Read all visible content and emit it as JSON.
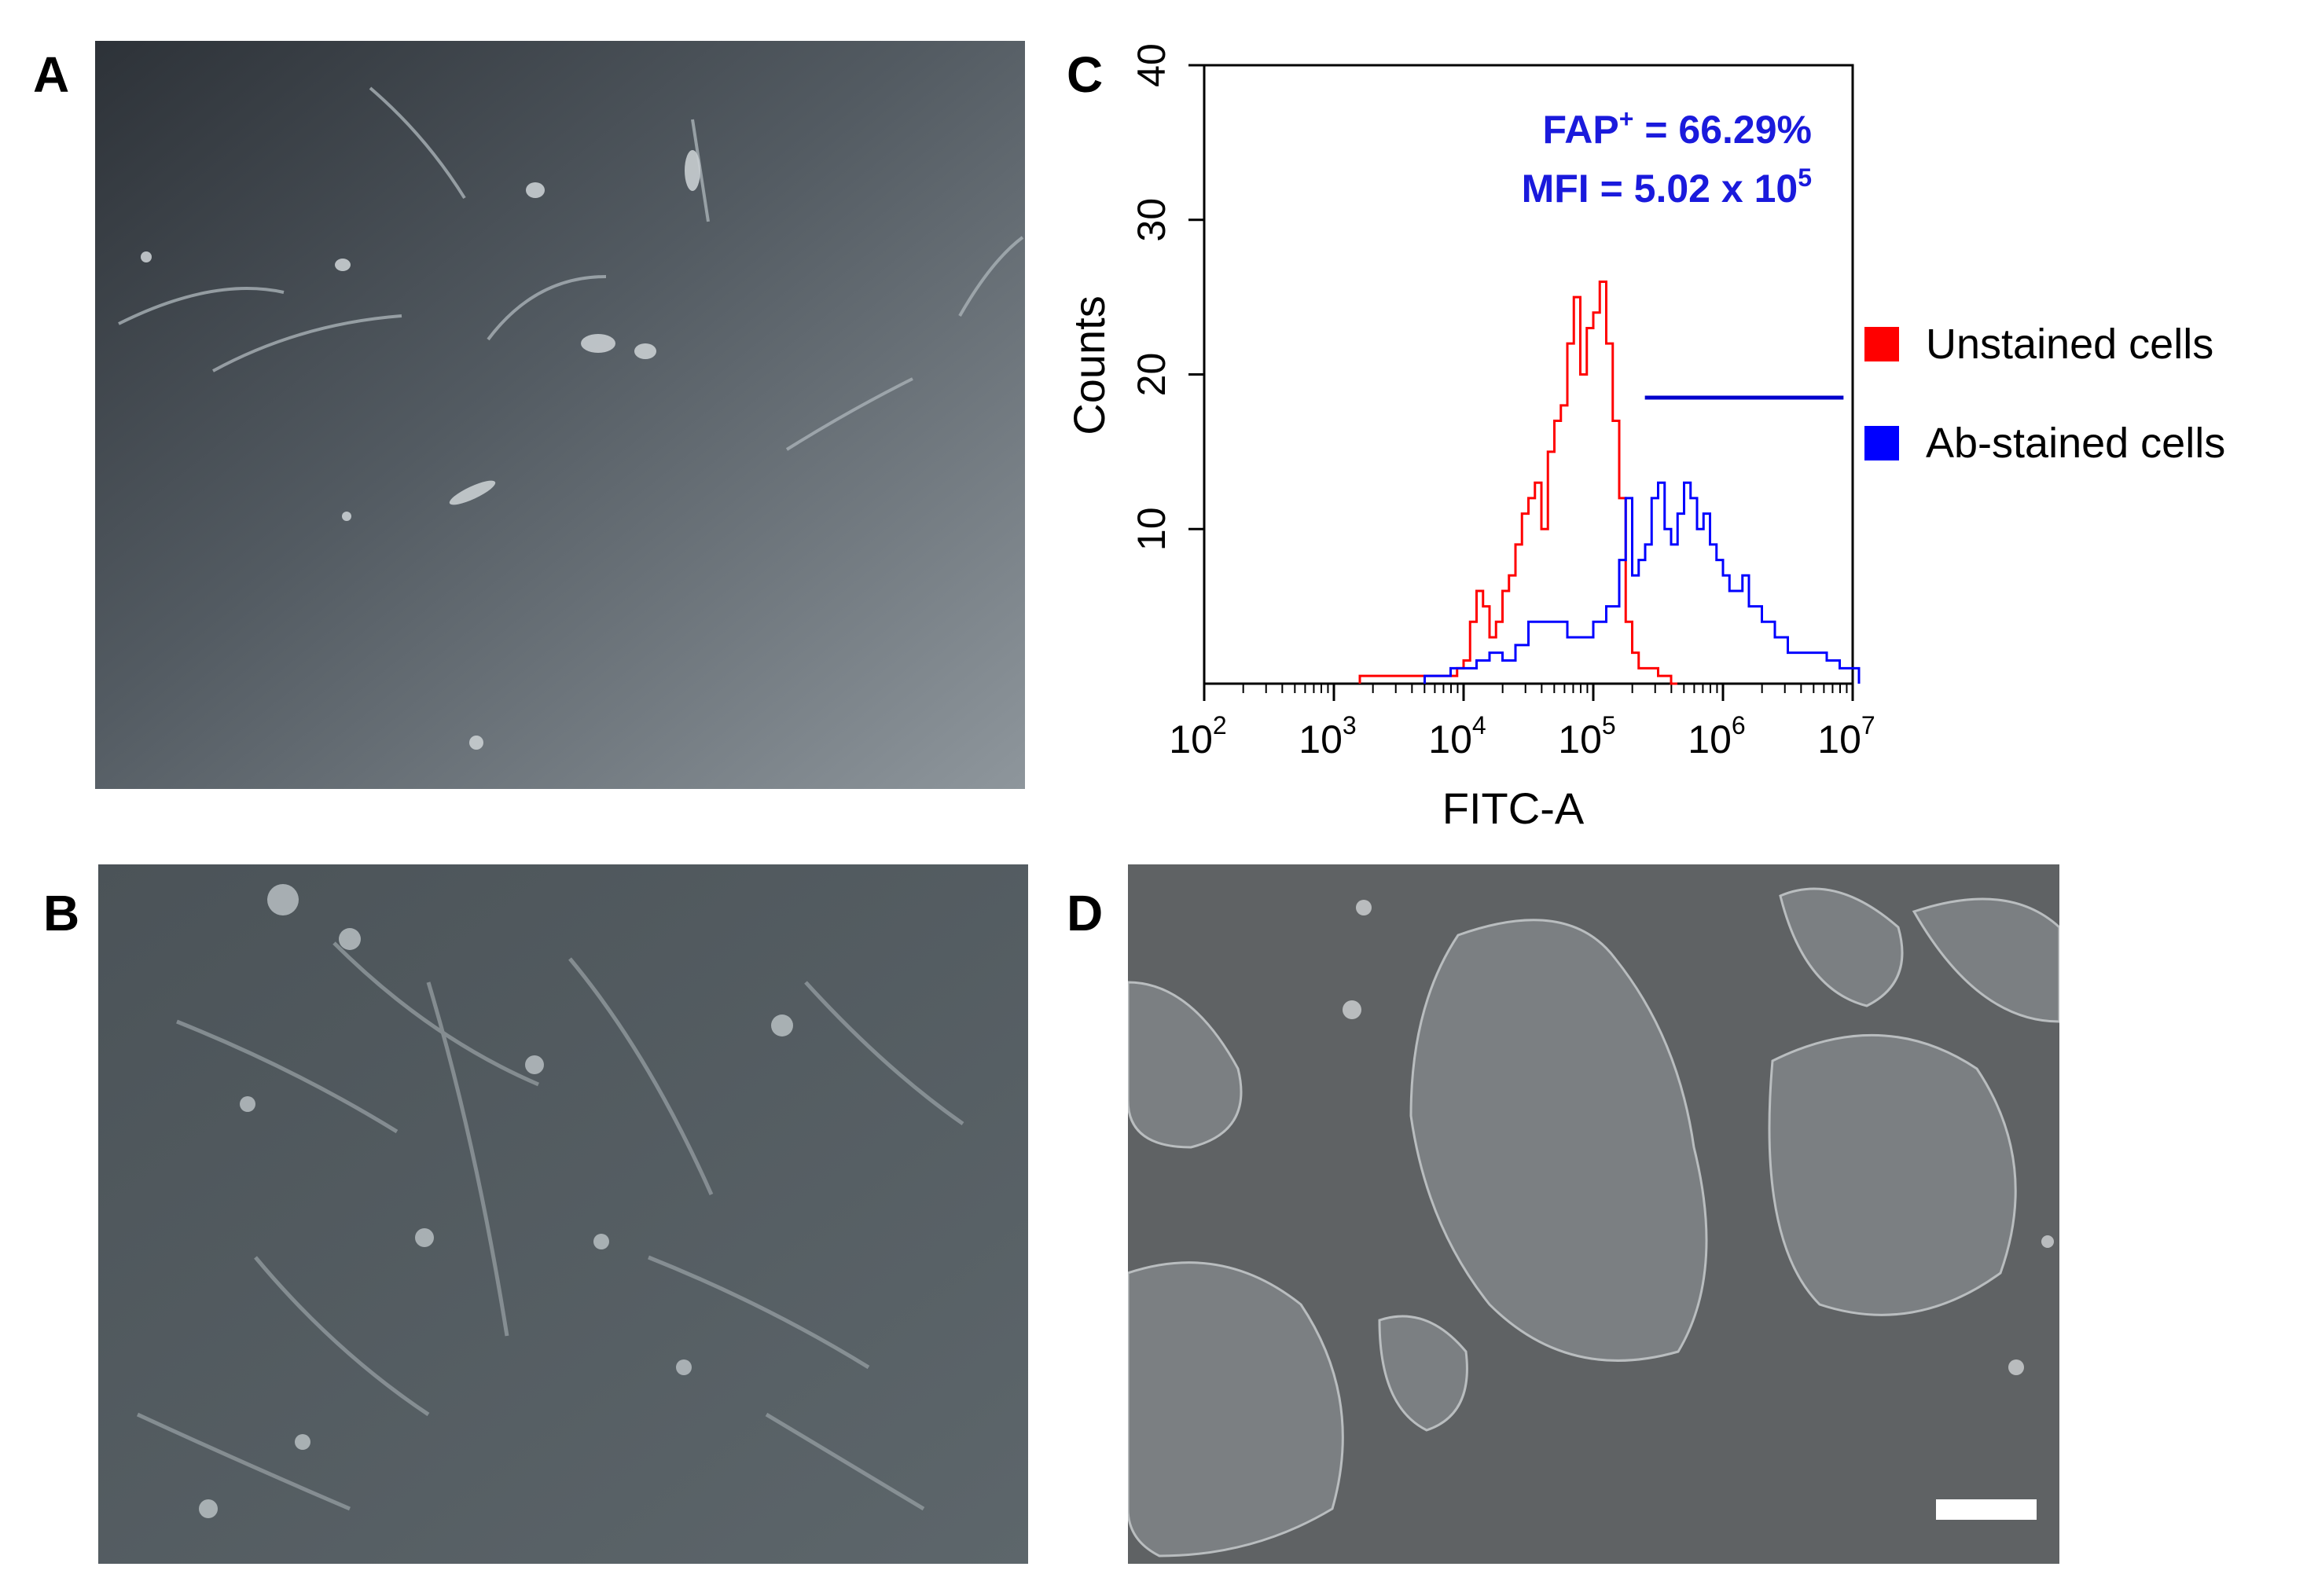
{
  "panels": {
    "a": {
      "letter": "A"
    },
    "b": {
      "letter": "B"
    },
    "c": {
      "letter": "C"
    },
    "d": {
      "letter": "D"
    }
  },
  "colors": {
    "unstained": "#ff0000",
    "stained": "#0000ff",
    "gate": "#0000cc",
    "annotation": "#1a1adc"
  },
  "chart_data": {
    "type": "histogram",
    "xlabel": "FITC-A",
    "ylabel": "Counts",
    "x_scale": "log",
    "xlim": [
      100,
      10000000
    ],
    "ylim": [
      0,
      40
    ],
    "x_ticks": [
      {
        "base": "10",
        "exp": "2",
        "value": 100
      },
      {
        "base": "10",
        "exp": "3",
        "value": 1000
      },
      {
        "base": "10",
        "exp": "4",
        "value": 10000
      },
      {
        "base": "10",
        "exp": "5",
        "value": 100000
      },
      {
        "base": "10",
        "exp": "6",
        "value": 1000000
      },
      {
        "base": "10",
        "exp": "7",
        "value": 10000000
      }
    ],
    "y_ticks": [
      "10",
      "20",
      "30",
      "40"
    ],
    "y_tick_values": [
      10,
      20,
      30,
      40
    ],
    "annotations": {
      "fap_prefix": "FAP",
      "fap_sup": "+",
      "fap_value": " = 66.29%",
      "mfi_prefix": "MFI = 5.02 x 10",
      "mfi_sup": "5"
    },
    "gate": {
      "x_start": 250000,
      "x_end": 8500000,
      "y": 18.5
    },
    "legend": [
      {
        "label": "Unstained cells",
        "color": "#ff0000"
      },
      {
        "label": "Ab-stained cells",
        "color": "#0000ff"
      }
    ],
    "series": [
      {
        "name": "Unstained cells",
        "color": "#ff0000",
        "log10_x": [
          3.2,
          3.65,
          3.85,
          3.95,
          4.0,
          4.05,
          4.1,
          4.15,
          4.2,
          4.25,
          4.3,
          4.35,
          4.4,
          4.45,
          4.5,
          4.55,
          4.6,
          4.65,
          4.7,
          4.75,
          4.8,
          4.85,
          4.9,
          4.95,
          5.0,
          5.05,
          5.1,
          5.15,
          5.2,
          5.25,
          5.3,
          5.35,
          5.4,
          5.5,
          5.6
        ],
        "counts": [
          0.5,
          0.5,
          0.5,
          1,
          1.5,
          4,
          6,
          5,
          3,
          4,
          6,
          7,
          9,
          11,
          12,
          13,
          10,
          15,
          17,
          18,
          22,
          25,
          20,
          23,
          24,
          26,
          22,
          17,
          12,
          4,
          2,
          1,
          1,
          0.5,
          0
        ]
      },
      {
        "name": "Ab-stained cells",
        "color": "#0000ff",
        "log10_x": [
          3.7,
          3.9,
          4.0,
          4.1,
          4.2,
          4.3,
          4.4,
          4.5,
          4.6,
          4.7,
          4.8,
          4.9,
          5.0,
          5.1,
          5.2,
          5.25,
          5.3,
          5.35,
          5.4,
          5.45,
          5.5,
          5.55,
          5.6,
          5.65,
          5.7,
          5.75,
          5.8,
          5.85,
          5.9,
          5.95,
          6.0,
          6.05,
          6.1,
          6.15,
          6.2,
          6.3,
          6.4,
          6.5,
          6.6,
          6.7,
          6.8,
          6.9,
          7.0
        ],
        "counts": [
          0.5,
          1,
          1,
          1.5,
          2,
          1.5,
          2.5,
          4,
          4,
          4,
          3,
          3,
          4,
          5,
          8,
          12,
          7,
          8,
          9,
          12,
          13,
          10,
          9,
          11,
          13,
          12,
          10,
          11,
          9,
          8,
          7,
          6,
          6,
          7,
          5,
          4,
          3,
          2,
          2,
          2,
          1.5,
          1,
          1
        ]
      }
    ]
  }
}
